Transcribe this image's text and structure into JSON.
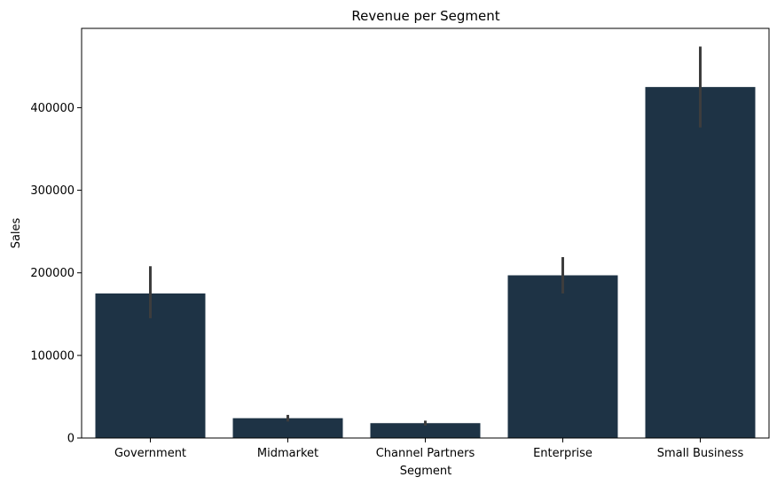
{
  "chart_data": {
    "type": "bar",
    "title": "Revenue per Segment",
    "xlabel": "Segment",
    "ylabel": "Sales",
    "categories": [
      "Government",
      "Midmarket",
      "Channel Partners",
      "Enterprise",
      "Small Business"
    ],
    "values": [
      175000,
      24000,
      18000,
      197000,
      425000
    ],
    "error_low": [
      145000,
      20000,
      15000,
      175000,
      376000
    ],
    "error_high": [
      208000,
      28000,
      21000,
      219000,
      474000
    ],
    "ylim": [
      0,
      496000
    ],
    "yticks": [
      0,
      100000,
      200000,
      300000,
      400000
    ],
    "ytick_labels": [
      "0",
      "100000",
      "200000",
      "300000",
      "400000"
    ],
    "grid": false,
    "colors": {
      "bar": "#1e3345",
      "error": "#3d3d3d",
      "axis": "#000000"
    }
  }
}
